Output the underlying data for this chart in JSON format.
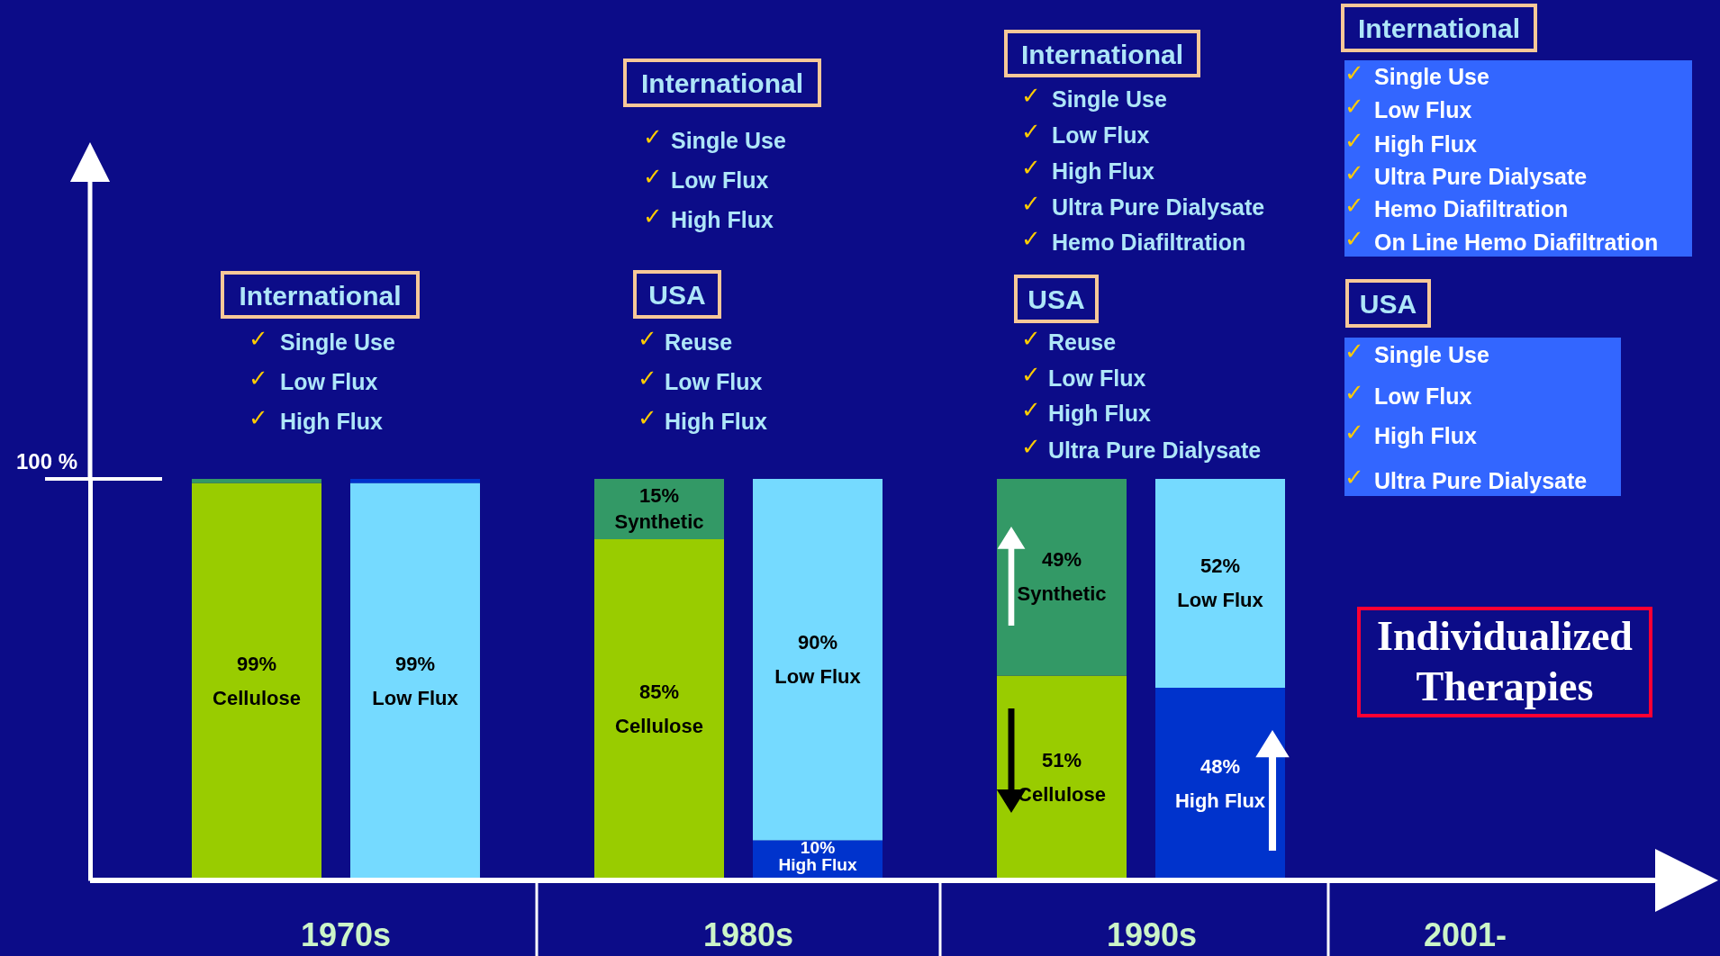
{
  "chart_data": {
    "type": "bar",
    "stacked": true,
    "categories": [
      null,
      null,
      null,
      null,
      null,
      null
    ],
    "ref_lines": [
      {
        "axis": "y",
        "value": 100,
        "label": "100 %"
      }
    ],
    "series": [
      {
        "colors": [
          "#99cc00",
          "#75daff",
          "#99cc00",
          "#0033cc",
          "#99cc00",
          "#0033cc"
        ],
        "values": [
          99,
          99,
          85,
          10,
          51,
          48
        ],
        "value_labels": [
          "99% Cellulose",
          "99% Low Flux",
          "85% Cellulose",
          "10% High Flux",
          "51% Cellulose",
          "48% High Flux"
        ]
      },
      {
        "colors": [
          "#339966",
          "#0033cc",
          "#339966",
          "#75daff",
          "#339966",
          "#75daff"
        ],
        "values": [
          1,
          1,
          15,
          90,
          49,
          52
        ],
        "value_labels": [
          null,
          null,
          "15% Synthetic",
          "90% Low Flux",
          "49% Synthetic",
          "52% Low Flux"
        ]
      }
    ],
    "annotations": [
      "1970s",
      "1980s",
      "1990s",
      "2001-",
      "International",
      "✓",
      "Single Use",
      "✓",
      "Low Flux",
      "✓",
      "High Flux",
      "International",
      "✓",
      "Single Use",
      "✓",
      "Low Flux",
      "✓",
      "High Flux",
      "USA",
      "✓",
      "Reuse",
      "✓",
      "Low Flux",
      "✓",
      "High Flux",
      "International",
      "✓",
      "Single Use",
      "✓",
      "Low Flux",
      "✓",
      "High Flux",
      "✓",
      "Ultra Pure Dialysate",
      "✓",
      "Hemo Diafiltration",
      "USA",
      "✓",
      "Reuse",
      "✓",
      "Low Flux",
      "✓",
      "High Flux",
      "✓",
      "Ultra Pure Dialysate",
      "International",
      "✓",
      "Single Use",
      "✓",
      "Low Flux",
      "✓",
      "High Flux",
      "✓",
      "Ultra Pure Dialysate",
      "✓",
      "Hemo Diafiltration",
      "✓",
      "On Line Hemo Diafiltration",
      "USA",
      "✓",
      "Single Use",
      "✓",
      "Low Flux",
      "✓",
      "High Flux",
      "✓",
      "Ultra Pure Dialysate",
      "Individualized Therapies"
    ]
  }
}
